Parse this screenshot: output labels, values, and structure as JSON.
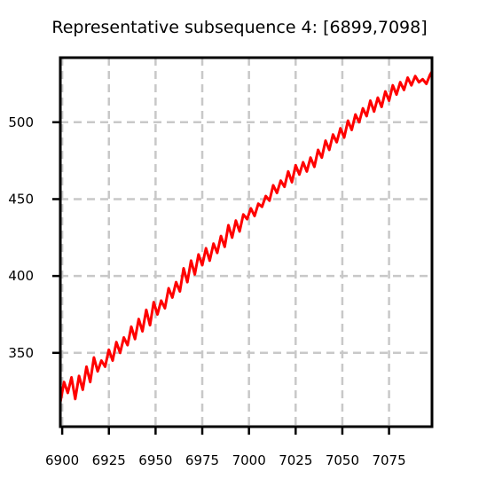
{
  "chart_data": {
    "type": "line",
    "title": "Representative subsequence 4: [6899,7098]",
    "xlabel": "",
    "ylabel": "",
    "xlim": [
      6899,
      7098
    ],
    "ylim": [
      302,
      542
    ],
    "x_ticks": [
      6900,
      6925,
      6950,
      6975,
      7000,
      7025,
      7050,
      7075
    ],
    "y_ticks": [
      350,
      400,
      450,
      500
    ],
    "grid": true,
    "line_color": "#ff0000",
    "grid_color": "#c8c8c8",
    "series": [
      {
        "x": [
          6899,
          6901,
          6903,
          6905,
          6907,
          6909,
          6911,
          6913,
          6915,
          6917,
          6919,
          6921,
          6923,
          6925,
          6927,
          6929,
          6931,
          6933,
          6935,
          6937,
          6939,
          6941,
          6943,
          6945,
          6947,
          6949,
          6951,
          6953,
          6955,
          6957,
          6959,
          6961,
          6963,
          6965,
          6967,
          6969,
          6971,
          6973,
          6975,
          6977,
          6979,
          6981,
          6983,
          6985,
          6987,
          6989,
          6991,
          6993,
          6995,
          6997,
          6999,
          7001,
          7003,
          7005,
          7007,
          7009,
          7011,
          7013,
          7015,
          7017,
          7019,
          7021,
          7023,
          7025,
          7027,
          7029,
          7031,
          7033,
          7035,
          7037,
          7039,
          7041,
          7043,
          7045,
          7047,
          7049,
          7051,
          7053,
          7055,
          7057,
          7059,
          7061,
          7063,
          7065,
          7067,
          7069,
          7071,
          7073,
          7075,
          7077,
          7079,
          7081,
          7083,
          7085,
          7087,
          7089,
          7091,
          7093,
          7095,
          7097,
          7098
        ],
        "y": [
          318,
          331,
          324,
          334,
          320,
          335,
          326,
          341,
          331,
          347,
          338,
          345,
          341,
          352,
          345,
          357,
          350,
          360,
          355,
          367,
          359,
          372,
          364,
          378,
          368,
          383,
          375,
          384,
          379,
          392,
          386,
          396,
          390,
          405,
          396,
          410,
          401,
          414,
          407,
          418,
          410,
          421,
          415,
          426,
          419,
          433,
          425,
          436,
          429,
          440,
          437,
          444,
          439,
          447,
          445,
          452,
          449,
          459,
          454,
          462,
          458,
          468,
          461,
          472,
          466,
          474,
          468,
          477,
          471,
          482,
          477,
          488,
          482,
          492,
          487,
          496,
          490,
          501,
          495,
          505,
          500,
          509,
          504,
          514,
          507,
          516,
          510,
          520,
          514,
          524,
          518,
          526,
          521,
          529,
          524,
          530,
          526,
          528,
          525,
          531,
          533
        ]
      }
    ]
  }
}
